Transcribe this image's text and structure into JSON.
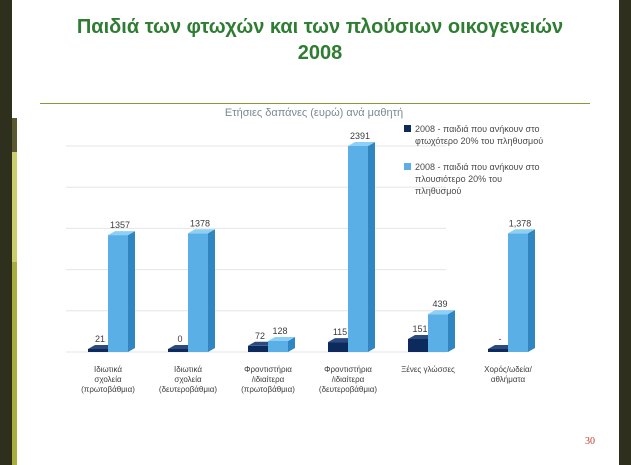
{
  "slide": {
    "title_line1": "Παιδιά των φτωχών και των πλούσιων οικογενειών",
    "title_line2": "2008",
    "page_number": "30"
  },
  "colors": {
    "poor_front": "#0d2a5e",
    "poor_side": "#061a3f",
    "poor_top": "#2a4a80",
    "rich_front": "#5ab0e6",
    "rich_side": "#2f86c0",
    "rich_top": "#8ed0f5",
    "title": "#2e7d32"
  },
  "chart_data": {
    "type": "bar",
    "title": "Ετήσιες δαπάνες (ευρώ) ανά μαθητή",
    "xlabel": "",
    "ylabel": "",
    "ylim": [
      0,
      2391
    ],
    "grid": true,
    "legend_position": "right",
    "categories": [
      [
        "Ιδιωτικά",
        "σχολεία",
        "(πρωτοβάθμια)"
      ],
      [
        "Ιδιωτικά",
        "σχολεία",
        "(δευτεροβάθμια)"
      ],
      [
        "Φροντιστήρια",
        "/ιδιαίτερα",
        "(πρωτοβάθμια)"
      ],
      [
        "Φροντιστήρια",
        "/ιδιαίτερα",
        "(δευτεροβάθμια)"
      ],
      [
        "Ξένες γλώσσες"
      ],
      [
        "Χορός/ωδεία/",
        "αθλήματα"
      ]
    ],
    "series": [
      {
        "name": [
          "2008 - παιδιά που ανήκουν στο",
          "φτωχότερο 20% του πληθυσμού"
        ],
        "values": [
          21,
          0,
          72,
          115,
          151,
          0
        ],
        "labels": [
          "21",
          "0",
          "72",
          "115",
          "151",
          "-"
        ]
      },
      {
        "name": [
          "2008 - παιδιά που ανήκουν στο",
          "πλουσιότερο 20% του",
          "πληθυσμού"
        ],
        "values": [
          1357,
          1378,
          128,
          2391,
          439,
          1378
        ],
        "labels": [
          "1357",
          "1378",
          "128",
          "2391",
          "439",
          "1,378"
        ]
      }
    ]
  }
}
